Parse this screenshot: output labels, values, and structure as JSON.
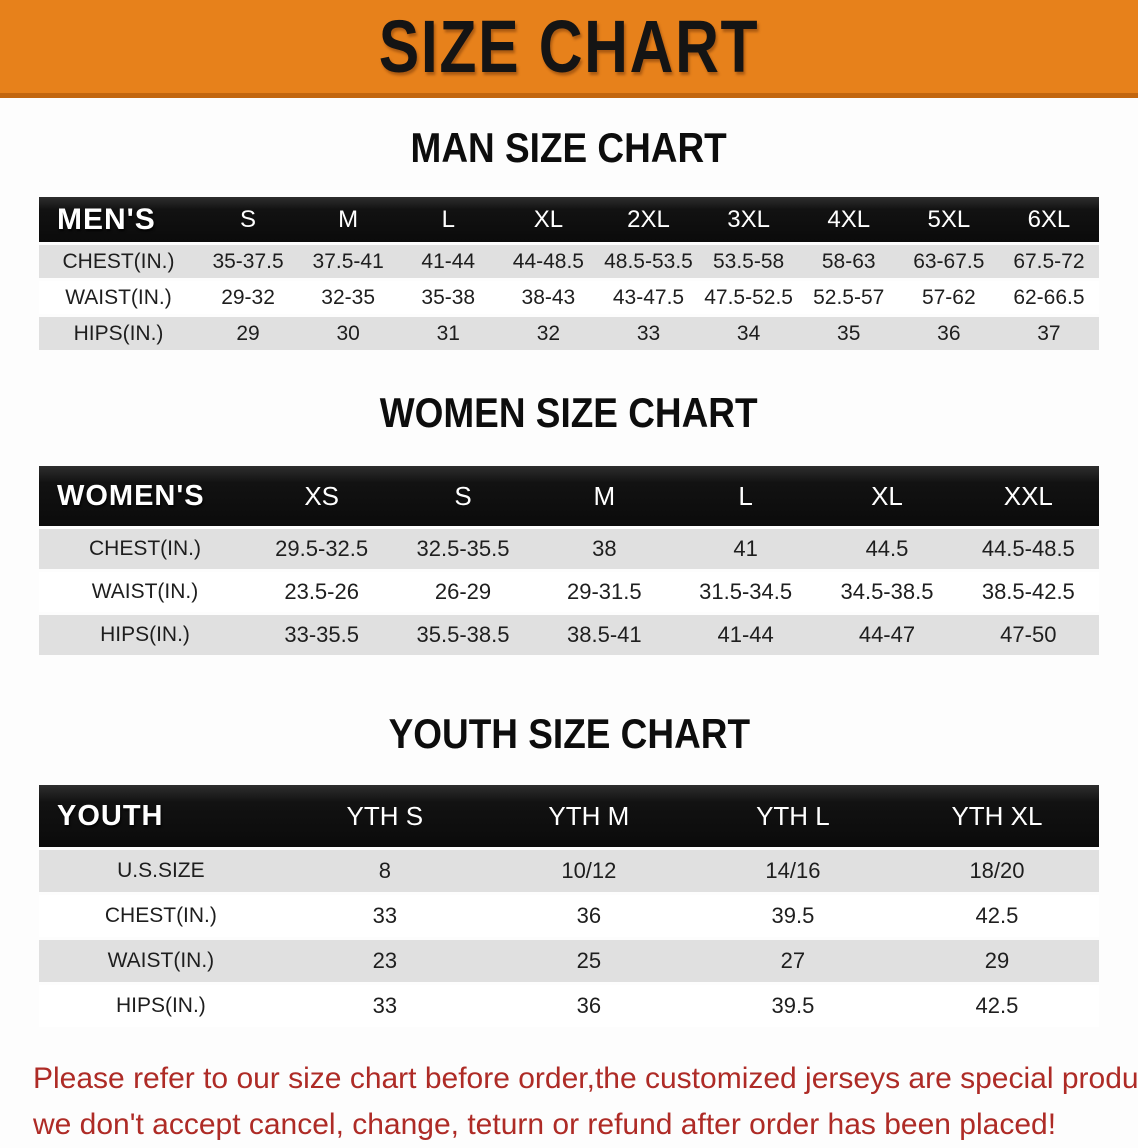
{
  "banner": {
    "title": "SIZE CHART"
  },
  "colors": {
    "banner_orange": "#E7811B",
    "banner_edge": "#C2660F",
    "header_black": "#121212",
    "row_gray": "#E0E0E0",
    "row_white": "#FFFFFF",
    "note_red": "#AE2B26"
  },
  "men": {
    "heading": "MAN SIZE CHART",
    "table": {
      "label": "MEN'S",
      "columns": [
        "S",
        "M",
        "L",
        "XL",
        "2XL",
        "3XL",
        "4XL",
        "5XL",
        "6XL"
      ],
      "rows": [
        {
          "label": "CHEST(IN.)",
          "values": [
            "35-37.5",
            "37.5-41",
            "41-44",
            "44-48.5",
            "48.5-53.5",
            "53.5-58",
            "58-63",
            "63-67.5",
            "67.5-72"
          ]
        },
        {
          "label": "WAIST(IN.)",
          "values": [
            "29-32",
            "32-35",
            "35-38",
            "38-43",
            "43-47.5",
            "47.5-52.5",
            "52.5-57",
            "57-62",
            "62-66.5"
          ]
        },
        {
          "label": "HIPS(IN.)",
          "values": [
            "29",
            "30",
            "31",
            "32",
            "33",
            "34",
            "35",
            "36",
            "37"
          ]
        }
      ]
    }
  },
  "women": {
    "heading": "WOMEN SIZE CHART",
    "table": {
      "label": "WOMEN'S",
      "columns": [
        "XS",
        "S",
        "M",
        "L",
        "XL",
        "XXL"
      ],
      "rows": [
        {
          "label": "CHEST(IN.)",
          "values": [
            "29.5-32.5",
            "32.5-35.5",
            "38",
            "41",
            "44.5",
            "44.5-48.5"
          ]
        },
        {
          "label": "WAIST(IN.)",
          "values": [
            "23.5-26",
            "26-29",
            "29-31.5",
            "31.5-34.5",
            "34.5-38.5",
            "38.5-42.5"
          ]
        },
        {
          "label": "HIPS(IN.)",
          "values": [
            "33-35.5",
            "35.5-38.5",
            "38.5-41",
            "41-44",
            "44-47",
            "47-50"
          ]
        }
      ]
    }
  },
  "youth": {
    "heading": "YOUTH SIZE CHART",
    "table": {
      "label": "YOUTH",
      "columns": [
        "YTH S",
        "YTH M",
        "YTH L",
        "YTH XL"
      ],
      "rows": [
        {
          "label": "U.S.SIZE",
          "values": [
            "8",
            "10/12",
            "14/16",
            "18/20"
          ]
        },
        {
          "label": "CHEST(IN.)",
          "values": [
            "33",
            "36",
            "39.5",
            "42.5"
          ]
        },
        {
          "label": "WAIST(IN.)",
          "values": [
            "23",
            "25",
            "27",
            "29"
          ]
        },
        {
          "label": "HIPS(IN.)",
          "values": [
            "33",
            "36",
            "39.5",
            "42.5"
          ]
        }
      ]
    }
  },
  "note": {
    "line1": "Please refer to our size chart before order,the customized jerseys are special products,",
    "line2": "we don't accept cancel, change, teturn or refund after order has been placed!"
  }
}
